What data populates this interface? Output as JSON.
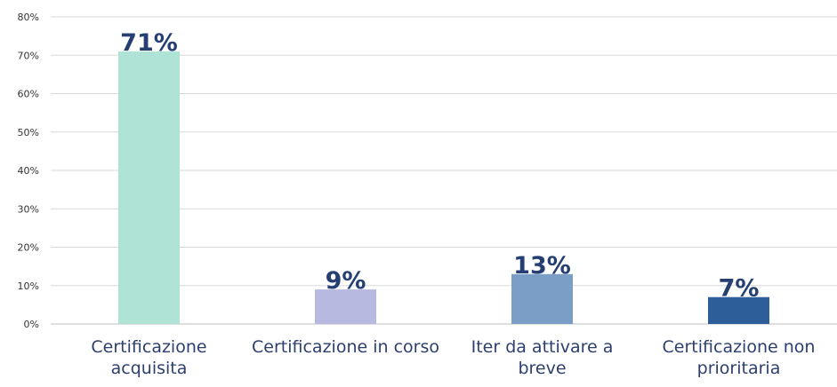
{
  "chart_data": {
    "type": "bar",
    "categories": [
      [
        "Certificazione",
        "acquisita"
      ],
      [
        "Certificazione in corso"
      ],
      [
        "Iter da attivare a",
        "breve"
      ],
      [
        "Certificazione non",
        "prioritaria"
      ]
    ],
    "values": [
      71,
      9,
      13,
      7
    ],
    "data_labels": [
      "71%",
      "9%",
      "13%",
      "7%"
    ],
    "bar_colors": [
      "#aee3d6",
      "#b7b9e0",
      "#7b9ec6",
      "#2e5e9a"
    ],
    "ylim": [
      0,
      80
    ],
    "yticks": [
      0,
      10,
      20,
      30,
      40,
      50,
      60,
      70,
      80
    ],
    "ytick_labels": [
      "0%",
      "10%",
      "20%",
      "30%",
      "40%",
      "50%",
      "60%",
      "70%",
      "80%"
    ],
    "grid": true,
    "legend": "none",
    "title": "",
    "xlabel": "",
    "ylabel": ""
  }
}
